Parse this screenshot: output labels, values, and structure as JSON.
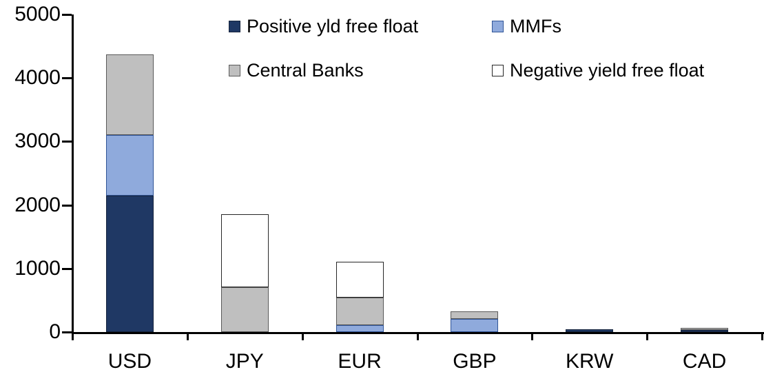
{
  "chart_data": {
    "type": "bar",
    "stacked": true,
    "title": "",
    "xlabel": "",
    "ylabel": "",
    "categories": [
      "USD",
      "JPY",
      "EUR",
      "GBP",
      "KRW",
      "CAD"
    ],
    "series": [
      {
        "name": "Positive yld free float",
        "color": "#1F3864",
        "border": "#16243D",
        "values": [
          2150,
          0,
          0,
          0,
          45,
          35
        ]
      },
      {
        "name": "MMFs",
        "color": "#8FAADC",
        "border": "#2F5496",
        "values": [
          950,
          0,
          110,
          210,
          0,
          0
        ]
      },
      {
        "name": "Central Banks",
        "color": "#BFBFBF",
        "border": "#595959",
        "values": [
          1270,
          700,
          430,
          120,
          0,
          25
        ]
      },
      {
        "name": "Negative yield free float",
        "color": "#FFFFFF",
        "border": "#262626",
        "values": [
          0,
          1150,
          570,
          0,
          0,
          0
        ]
      }
    ],
    "totals": [
      4370,
      1850,
      1110,
      330,
      45,
      60
    ],
    "ylim": [
      0,
      5000
    ],
    "yticks": [
      0,
      1000,
      2000,
      3000,
      4000,
      5000
    ],
    "grid": false,
    "legend_position": "top",
    "axis_color": "#000000",
    "background_color": "#FFFFFF"
  }
}
